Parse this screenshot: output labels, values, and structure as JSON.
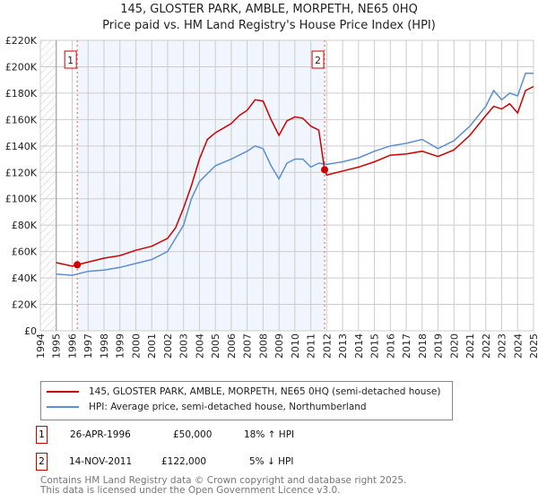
{
  "chart_data": {
    "type": "line",
    "title": "145, GLOSTER PARK, AMBLE, MORPETH, NE65 0HQ",
    "subtitle": "Price paid vs. HM Land Registry's House Price Index (HPI)",
    "xlim": [
      1994,
      2025
    ],
    "ylim": [
      0,
      220000
    ],
    "yticks": [
      0,
      20000,
      40000,
      60000,
      80000,
      100000,
      120000,
      140000,
      160000,
      180000,
      200000,
      220000
    ],
    "ytick_labels": [
      "£0",
      "£20K",
      "£40K",
      "£60K",
      "£80K",
      "£100K",
      "£120K",
      "£140K",
      "£160K",
      "£180K",
      "£200K",
      "£220K"
    ],
    "xticks": [
      "1994",
      "1995",
      "1996",
      "1997",
      "1998",
      "1999",
      "2000",
      "2001",
      "2002",
      "2003",
      "2004",
      "2005",
      "2006",
      "2007",
      "2008",
      "2009",
      "2010",
      "2011",
      "2012",
      "2013",
      "2014",
      "2015",
      "2016",
      "2017",
      "2018",
      "2019",
      "2020",
      "2021",
      "2022",
      "2023",
      "2024",
      "2025"
    ],
    "grid": true,
    "series": [
      {
        "name": "145, GLOSTER PARK, AMBLE, MORPETH, NE65 0HQ (semi-detached house)",
        "color": "#cc0000",
        "x": [
          1995,
          1996,
          1996.32,
          1997,
          1998,
          1999,
          2000,
          2001,
          2002,
          2002.5,
          2003,
          2003.5,
          2004,
          2004.5,
          2005,
          2006,
          2006.5,
          2007,
          2007.5,
          2008,
          2008.5,
          2009,
          2009.5,
          2010,
          2010.5,
          2011,
          2011.5,
          2011.87,
          2012,
          2013,
          2014,
          2015,
          2016,
          2017,
          2018,
          2019,
          2020,
          2021,
          2022,
          2022.5,
          2023,
          2023.5,
          2024,
          2024.5,
          2025
        ],
        "y": [
          51600,
          49000,
          50000,
          52000,
          55000,
          57000,
          61000,
          64000,
          70000,
          78000,
          93000,
          110000,
          130000,
          145000,
          150000,
          157000,
          163000,
          167000,
          175000,
          174000,
          160000,
          148000,
          159000,
          162000,
          161000,
          155000,
          152000,
          122000,
          118000,
          121000,
          124000,
          128000,
          133000,
          134000,
          136000,
          132000,
          137000,
          148000,
          163000,
          170000,
          168000,
          172000,
          165000,
          182000,
          185000
        ]
      },
      {
        "name": "HPI: Average price, semi-detached house, Northumberland",
        "color": "#5b8fd0",
        "x": [
          1995,
          1996,
          1997,
          1998,
          1999,
          2000,
          2001,
          2002,
          2002.5,
          2003,
          2003.5,
          2004,
          2005,
          2006,
          2007,
          2007.5,
          2008,
          2008.5,
          2009,
          2009.5,
          2010,
          2010.5,
          2011,
          2011.5,
          2012,
          2013,
          2014,
          2015,
          2016,
          2017,
          2018,
          2019,
          2020,
          2021,
          2022,
          2022.5,
          2023,
          2023.5,
          2024,
          2024.5,
          2025
        ],
        "y": [
          43000,
          42000,
          45000,
          46000,
          48000,
          51000,
          54000,
          60000,
          70000,
          80000,
          100000,
          113000,
          125000,
          130000,
          136000,
          140000,
          138000,
          125000,
          115000,
          127000,
          130000,
          130000,
          124000,
          127000,
          126000,
          128000,
          131000,
          136000,
          140000,
          142000,
          145000,
          138000,
          144000,
          155000,
          170000,
          182000,
          175000,
          180000,
          178000,
          195000,
          195000
        ]
      }
    ],
    "annotations": [
      {
        "label": "1",
        "x": 1996.32,
        "y": 50000
      },
      {
        "label": "2",
        "x": 2011.87,
        "y": 122000
      }
    ],
    "legend": "bottom"
  },
  "legend": {
    "red": "145, GLOSTER PARK, AMBLE, MORPETH, NE65 0HQ (semi-detached house)",
    "blue": "HPI: Average price, semi-detached house, Northumberland"
  },
  "sales": [
    {
      "num": "1",
      "date": "26-APR-1996",
      "price": "£50,000",
      "hpi": "18% ↑ HPI"
    },
    {
      "num": "2",
      "date": "14-NOV-2011",
      "price": "£122,000",
      "hpi": "5% ↓ HPI"
    }
  ],
  "footer": {
    "line1": "Contains HM Land Registry data © Crown copyright and database right 2025.",
    "line2": "This data is licensed under the Open Government Licence v3.0."
  }
}
